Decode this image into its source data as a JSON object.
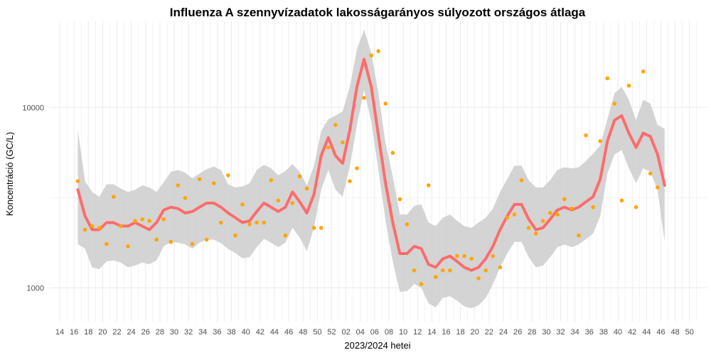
{
  "chart_data": {
    "type": "line",
    "title": "Influenza A szennyvízadatok lakosságarányos súlyozott országos átlaga",
    "xlabel": "2023/2024 hetei",
    "ylabel": "Koncentráció (GC/L)",
    "y_scale": "log10",
    "ylim": [
      650,
      30000
    ],
    "y_ticks": [
      1000,
      10000
    ],
    "y_tick_labels": [
      "1000",
      "10000"
    ],
    "x_tick_labels": [
      "14",
      "16",
      "18",
      "20",
      "22",
      "24",
      "26",
      "28",
      "30",
      "32",
      "34",
      "36",
      "38",
      "40",
      "42",
      "44",
      "46",
      "48",
      "50",
      "52",
      "02",
      "04",
      "06",
      "08",
      "10",
      "12",
      "14",
      "16",
      "18",
      "20",
      "22",
      "24",
      "26",
      "28",
      "30",
      "32",
      "34",
      "36",
      "38",
      "40",
      "42",
      "44",
      "46",
      "48",
      "50"
    ],
    "grid": true,
    "legend": "none",
    "colors": {
      "trend": "#ff6b6b",
      "points": "#ffa500",
      "band": "#cccccc",
      "grid": "#ebebeb"
    },
    "series": [
      {
        "role": "trend",
        "values": [
          3500,
          2500,
          2100,
          2100,
          2300,
          2300,
          2200,
          2200,
          2300,
          2200,
          2100,
          2300,
          2700,
          2800,
          2750,
          2600,
          2650,
          2800,
          2950,
          2950,
          2800,
          2600,
          2450,
          2300,
          2350,
          2650,
          2950,
          2800,
          2650,
          2800,
          3400,
          3000,
          2600,
          3300,
          5400,
          6800,
          5400,
          4900,
          7500,
          13000,
          18500,
          13000,
          7000,
          3800,
          2300,
          1550,
          1550,
          1700,
          1650,
          1350,
          1300,
          1450,
          1500,
          1400,
          1300,
          1250,
          1300,
          1450,
          1700,
          2100,
          2500,
          2900,
          2900,
          2400,
          2100,
          2150,
          2400,
          2700,
          2800,
          2700,
          2800,
          3000,
          3200,
          4000,
          6500,
          8500,
          9000,
          7200,
          6000,
          7200,
          6900,
          5500,
          3700
        ]
      },
      {
        "role": "ci_upper",
        "values": [
          7500,
          3900,
          3400,
          3200,
          3750,
          3750,
          3550,
          3400,
          3500,
          3700,
          3600,
          3400,
          3850,
          4400,
          4500,
          4350,
          4050,
          4300,
          4550,
          4700,
          4500,
          3750,
          3600,
          3650,
          3800,
          4500,
          4800,
          4600,
          4200,
          4450,
          4850,
          4400,
          3700,
          4750,
          7400,
          8600,
          9000,
          9500,
          13000,
          21000,
          27000,
          20000,
          12000,
          6300,
          4150,
          2550,
          2550,
          2850,
          2900,
          2300,
          2200,
          2450,
          2550,
          2350,
          2200,
          2150,
          2300,
          2450,
          2750,
          3400,
          4000,
          4750,
          4750,
          3950,
          3600,
          3600,
          3950,
          4500,
          4650,
          4600,
          4650,
          5050,
          5550,
          6150,
          8600,
          12000,
          13000,
          11000,
          8500,
          11000,
          10500,
          8000,
          7600
        ]
      },
      {
        "role": "ci_lower",
        "values": [
          1750,
          1650,
          1300,
          1270,
          1400,
          1420,
          1380,
          1300,
          1330,
          1380,
          1350,
          1420,
          1700,
          1800,
          1780,
          1740,
          1650,
          1780,
          1850,
          1850,
          1770,
          1640,
          1560,
          1460,
          1480,
          1680,
          1870,
          1780,
          1680,
          1780,
          2150,
          1900,
          1600,
          2150,
          3500,
          4500,
          3500,
          3200,
          4700,
          8000,
          12500,
          8300,
          4500,
          2350,
          1400,
          950,
          960,
          1050,
          1000,
          820,
          780,
          880,
          900,
          850,
          790,
          770,
          800,
          880,
          1050,
          1300,
          1550,
          1800,
          1800,
          1480,
          1300,
          1330,
          1480,
          1680,
          1740,
          1680,
          1740,
          1860,
          2000,
          2500,
          4300,
          5500,
          5800,
          4600,
          3800,
          4600,
          4400,
          3500,
          1800
        ]
      },
      {
        "role": "observations",
        "values": [
          3900,
          2100,
          2200,
          2150,
          1750,
          3200,
          2200,
          1700,
          2350,
          2400,
          2350,
          1850,
          2400,
          1800,
          3700,
          3150,
          1750,
          4000,
          1850,
          3800,
          2300,
          4200,
          1950,
          2900,
          2250,
          2300,
          2300,
          3950,
          3050,
          1950,
          2950,
          4150,
          3550,
          2150,
          2150,
          6000,
          8000,
          6400,
          3900,
          4600,
          11300,
          19400,
          20500,
          10500,
          5600,
          3100,
          2250,
          1250,
          1050,
          3700,
          1150,
          1250,
          1250,
          1500,
          1500,
          1450,
          1130,
          1250,
          1500,
          1300,
          2450,
          2550,
          3950,
          2150,
          2000,
          2350,
          2600,
          2550,
          3100,
          2750,
          1950,
          7000,
          2800,
          6500,
          14500,
          10500,
          3050,
          13200,
          2800,
          15800,
          4300,
          3600
        ]
      }
    ]
  }
}
